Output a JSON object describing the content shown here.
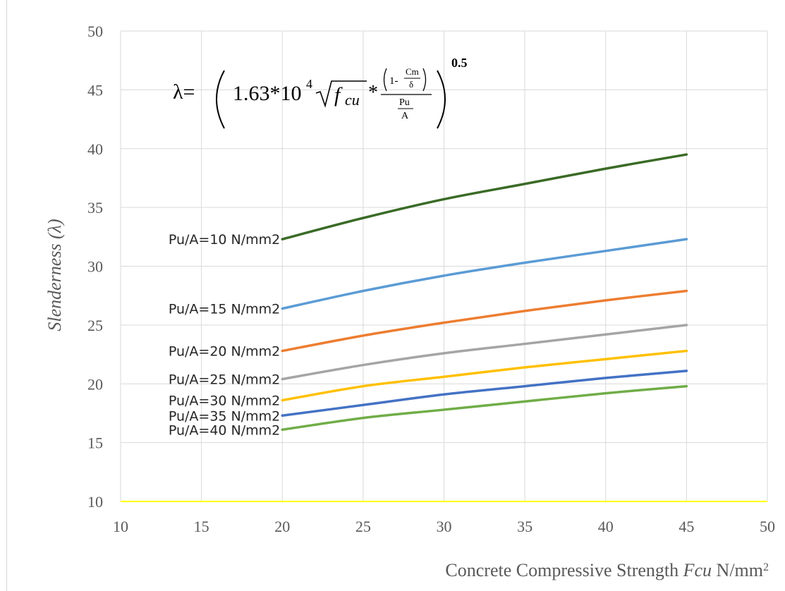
{
  "chart_data": {
    "type": "line",
    "xlabel_parts": [
      "Concrete Compressive Strength ",
      "Fcu",
      " N/mm",
      "2"
    ],
    "ylabel": "Slenderness (λ)",
    "xlim": [
      10,
      50
    ],
    "ylim": [
      10,
      50
    ],
    "x_ticks": [
      10,
      15,
      20,
      25,
      30,
      35,
      40,
      45,
      50
    ],
    "y_ticks": [
      10,
      15,
      20,
      25,
      30,
      35,
      40,
      45,
      50
    ],
    "grid": true,
    "legend": "inline labels at left end of each line",
    "annotation": {
      "lhs": "λ=",
      "coef": "1.63*10",
      "exp": "4",
      "var": "f",
      "var_sub": "cu",
      "star": "*",
      "one_minus": "1-",
      "cm": "Cm",
      "delta": "δ",
      "pu": "Pu",
      "a": "A",
      "power": "0.5"
    },
    "series": [
      {
        "name": "Pu/A=10 N/mm2",
        "color": "#3a6b26",
        "x": [
          20,
          25,
          30,
          35,
          40,
          45
        ],
        "values": [
          32.3,
          34.1,
          35.7,
          37.0,
          38.3,
          39.5
        ]
      },
      {
        "name": "Pu/A=15 N/mm2",
        "color": "#5b9bd5",
        "x": [
          20,
          25,
          30,
          35,
          40,
          45
        ],
        "values": [
          26.4,
          27.9,
          29.2,
          30.3,
          31.3,
          32.3
        ]
      },
      {
        "name": "Pu/A=20 N/mm2",
        "color": "#ed7d31",
        "x": [
          20,
          25,
          30,
          35,
          40,
          45
        ],
        "values": [
          22.8,
          24.1,
          25.2,
          26.2,
          27.1,
          27.9
        ]
      },
      {
        "name": "Pu/A=25 N/mm2",
        "color": "#a5a5a5",
        "x": [
          20,
          25,
          30,
          35,
          40,
          45
        ],
        "values": [
          20.4,
          21.6,
          22.6,
          23.4,
          24.2,
          25.0
        ]
      },
      {
        "name": "Pu/A=30 N/mm2",
        "color": "#ffc000",
        "x": [
          20,
          25,
          30,
          35,
          40,
          45
        ],
        "values": [
          18.6,
          19.8,
          20.6,
          21.4,
          22.1,
          22.8
        ]
      },
      {
        "name": "Pu/A=35 N/mm2",
        "color": "#4472c4",
        "x": [
          20,
          25,
          30,
          35,
          40,
          45
        ],
        "values": [
          17.3,
          18.2,
          19.1,
          19.8,
          20.5,
          21.1
        ]
      },
      {
        "name": "Pu/A=40 N/mm2",
        "color": "#70ad47",
        "x": [
          20,
          25,
          30,
          35,
          40,
          45
        ],
        "values": [
          16.1,
          17.1,
          17.8,
          18.5,
          19.2,
          19.8
        ]
      }
    ],
    "baseline_color": "#ffff00",
    "grid_color": "#d9d9d9"
  }
}
